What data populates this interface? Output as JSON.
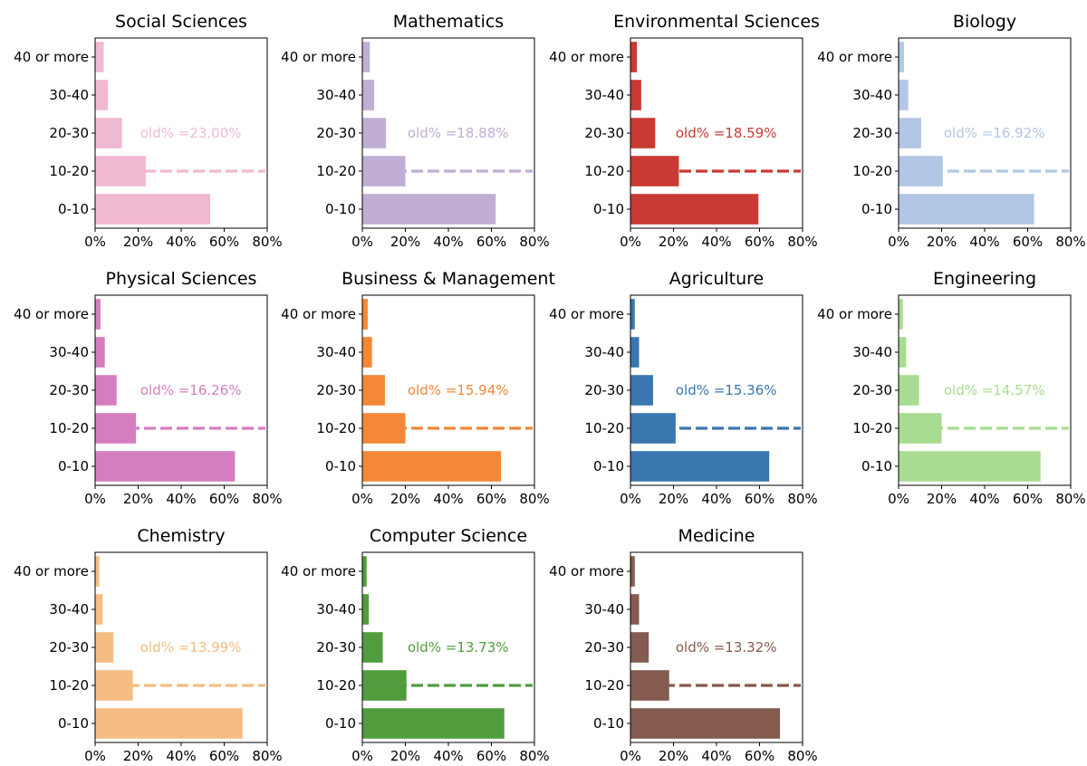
{
  "chart_data": [
    {
      "type": "bar",
      "title": "Social Sciences",
      "color": "#f0b9d2",
      "categories": [
        "0-10",
        "10-20",
        "20-30",
        "30-40",
        "40 or more"
      ],
      "values": [
        53.5,
        23.5,
        12.5,
        6.0,
        4.0
      ],
      "old_label": "old% =23.00%",
      "old_value": 15,
      "xlim": [
        0,
        80
      ],
      "xticks": [
        "0%",
        "20%",
        "40%",
        "60%",
        "80%"
      ]
    },
    {
      "type": "bar",
      "title": "Mathematics",
      "color": "#c0aed4",
      "categories": [
        "0-10",
        "10-20",
        "20-30",
        "30-40",
        "40 or more"
      ],
      "values": [
        62.0,
        20.0,
        11.0,
        5.5,
        3.5
      ],
      "old_label": "old% =18.88%",
      "old_value": 15,
      "xlim": [
        0,
        80
      ],
      "xticks": [
        "0%",
        "20%",
        "40%",
        "60%",
        "80%"
      ]
    },
    {
      "type": "bar",
      "title": "Environmental Sciences",
      "color": "#c83a33",
      "categories": [
        "0-10",
        "10-20",
        "20-30",
        "30-40",
        "40 or more"
      ],
      "values": [
        59.5,
        22.5,
        11.5,
        5.0,
        3.0
      ],
      "old_label": "old% =18.59%",
      "old_value": 15,
      "xlim": [
        0,
        80
      ],
      "xticks": [
        "0%",
        "20%",
        "40%",
        "60%",
        "80%"
      ]
    },
    {
      "type": "bar",
      "title": "Biology",
      "color": "#b2c6e5",
      "categories": [
        "0-10",
        "10-20",
        "20-30",
        "30-40",
        "40 or more"
      ],
      "values": [
        63.0,
        20.5,
        10.5,
        4.5,
        2.5
      ],
      "old_label": "old% =16.92%",
      "old_value": 15,
      "xlim": [
        0,
        80
      ],
      "xticks": [
        "0%",
        "20%",
        "40%",
        "60%",
        "80%"
      ]
    },
    {
      "type": "bar",
      "title": "Physical Sciences",
      "color": "#d57ebf",
      "categories": [
        "0-10",
        "10-20",
        "20-30",
        "30-40",
        "40 or more"
      ],
      "values": [
        65.0,
        19.0,
        10.0,
        4.5,
        2.5
      ],
      "old_label": "old% =16.26%",
      "old_value": 15,
      "xlim": [
        0,
        80
      ],
      "xticks": [
        "0%",
        "20%",
        "40%",
        "60%",
        "80%"
      ]
    },
    {
      "type": "bar",
      "title": "Business & Management",
      "color": "#f28838",
      "categories": [
        "0-10",
        "10-20",
        "20-30",
        "30-40",
        "40 or more"
      ],
      "values": [
        64.5,
        20.0,
        10.5,
        4.5,
        2.5
      ],
      "old_label": "old% =15.94%",
      "old_value": 15,
      "xlim": [
        0,
        80
      ],
      "xticks": [
        "0%",
        "20%",
        "40%",
        "60%",
        "80%"
      ]
    },
    {
      "type": "bar",
      "title": "Agriculture",
      "color": "#3a76af",
      "categories": [
        "0-10",
        "10-20",
        "20-30",
        "30-40",
        "40 or more"
      ],
      "values": [
        64.5,
        21.0,
        10.5,
        4.0,
        2.0
      ],
      "old_label": "old% =15.36%",
      "old_value": 15,
      "xlim": [
        0,
        80
      ],
      "xticks": [
        "0%",
        "20%",
        "40%",
        "60%",
        "80%"
      ]
    },
    {
      "type": "bar",
      "title": "Engineering",
      "color": "#a8dc90",
      "categories": [
        "0-10",
        "10-20",
        "20-30",
        "30-40",
        "40 or more"
      ],
      "values": [
        66.0,
        20.0,
        9.5,
        3.5,
        2.0
      ],
      "old_label": "old% =14.57%",
      "old_value": 15,
      "xlim": [
        0,
        80
      ],
      "xticks": [
        "0%",
        "20%",
        "40%",
        "60%",
        "80%"
      ]
    },
    {
      "type": "bar",
      "title": "Chemistry",
      "color": "#f5bd82",
      "categories": [
        "0-10",
        "10-20",
        "20-30",
        "30-40",
        "40 or more"
      ],
      "values": [
        68.5,
        17.5,
        8.5,
        3.5,
        2.0
      ],
      "old_label": "old% =13.99%",
      "old_value": 15,
      "xlim": [
        0,
        80
      ],
      "xticks": [
        "0%",
        "20%",
        "40%",
        "60%",
        "80%"
      ]
    },
    {
      "type": "bar",
      "title": "Computer Science",
      "color": "#519d3e",
      "categories": [
        "0-10",
        "10-20",
        "20-30",
        "30-40",
        "40 or more"
      ],
      "values": [
        66.0,
        20.5,
        9.5,
        3.0,
        2.0
      ],
      "old_label": "old% =13.73%",
      "old_value": 15,
      "xlim": [
        0,
        80
      ],
      "xticks": [
        "0%",
        "20%",
        "40%",
        "60%",
        "80%"
      ]
    },
    {
      "type": "bar",
      "title": "Medicine",
      "color": "#845b4e",
      "categories": [
        "0-10",
        "10-20",
        "20-30",
        "30-40",
        "40 or more"
      ],
      "values": [
        69.5,
        18.0,
        8.5,
        4.0,
        2.0
      ],
      "old_label": "old% =13.32%",
      "old_value": 15,
      "xlim": [
        0,
        80
      ],
      "xticks": [
        "0%",
        "20%",
        "40%",
        "60%",
        "80%"
      ]
    }
  ]
}
